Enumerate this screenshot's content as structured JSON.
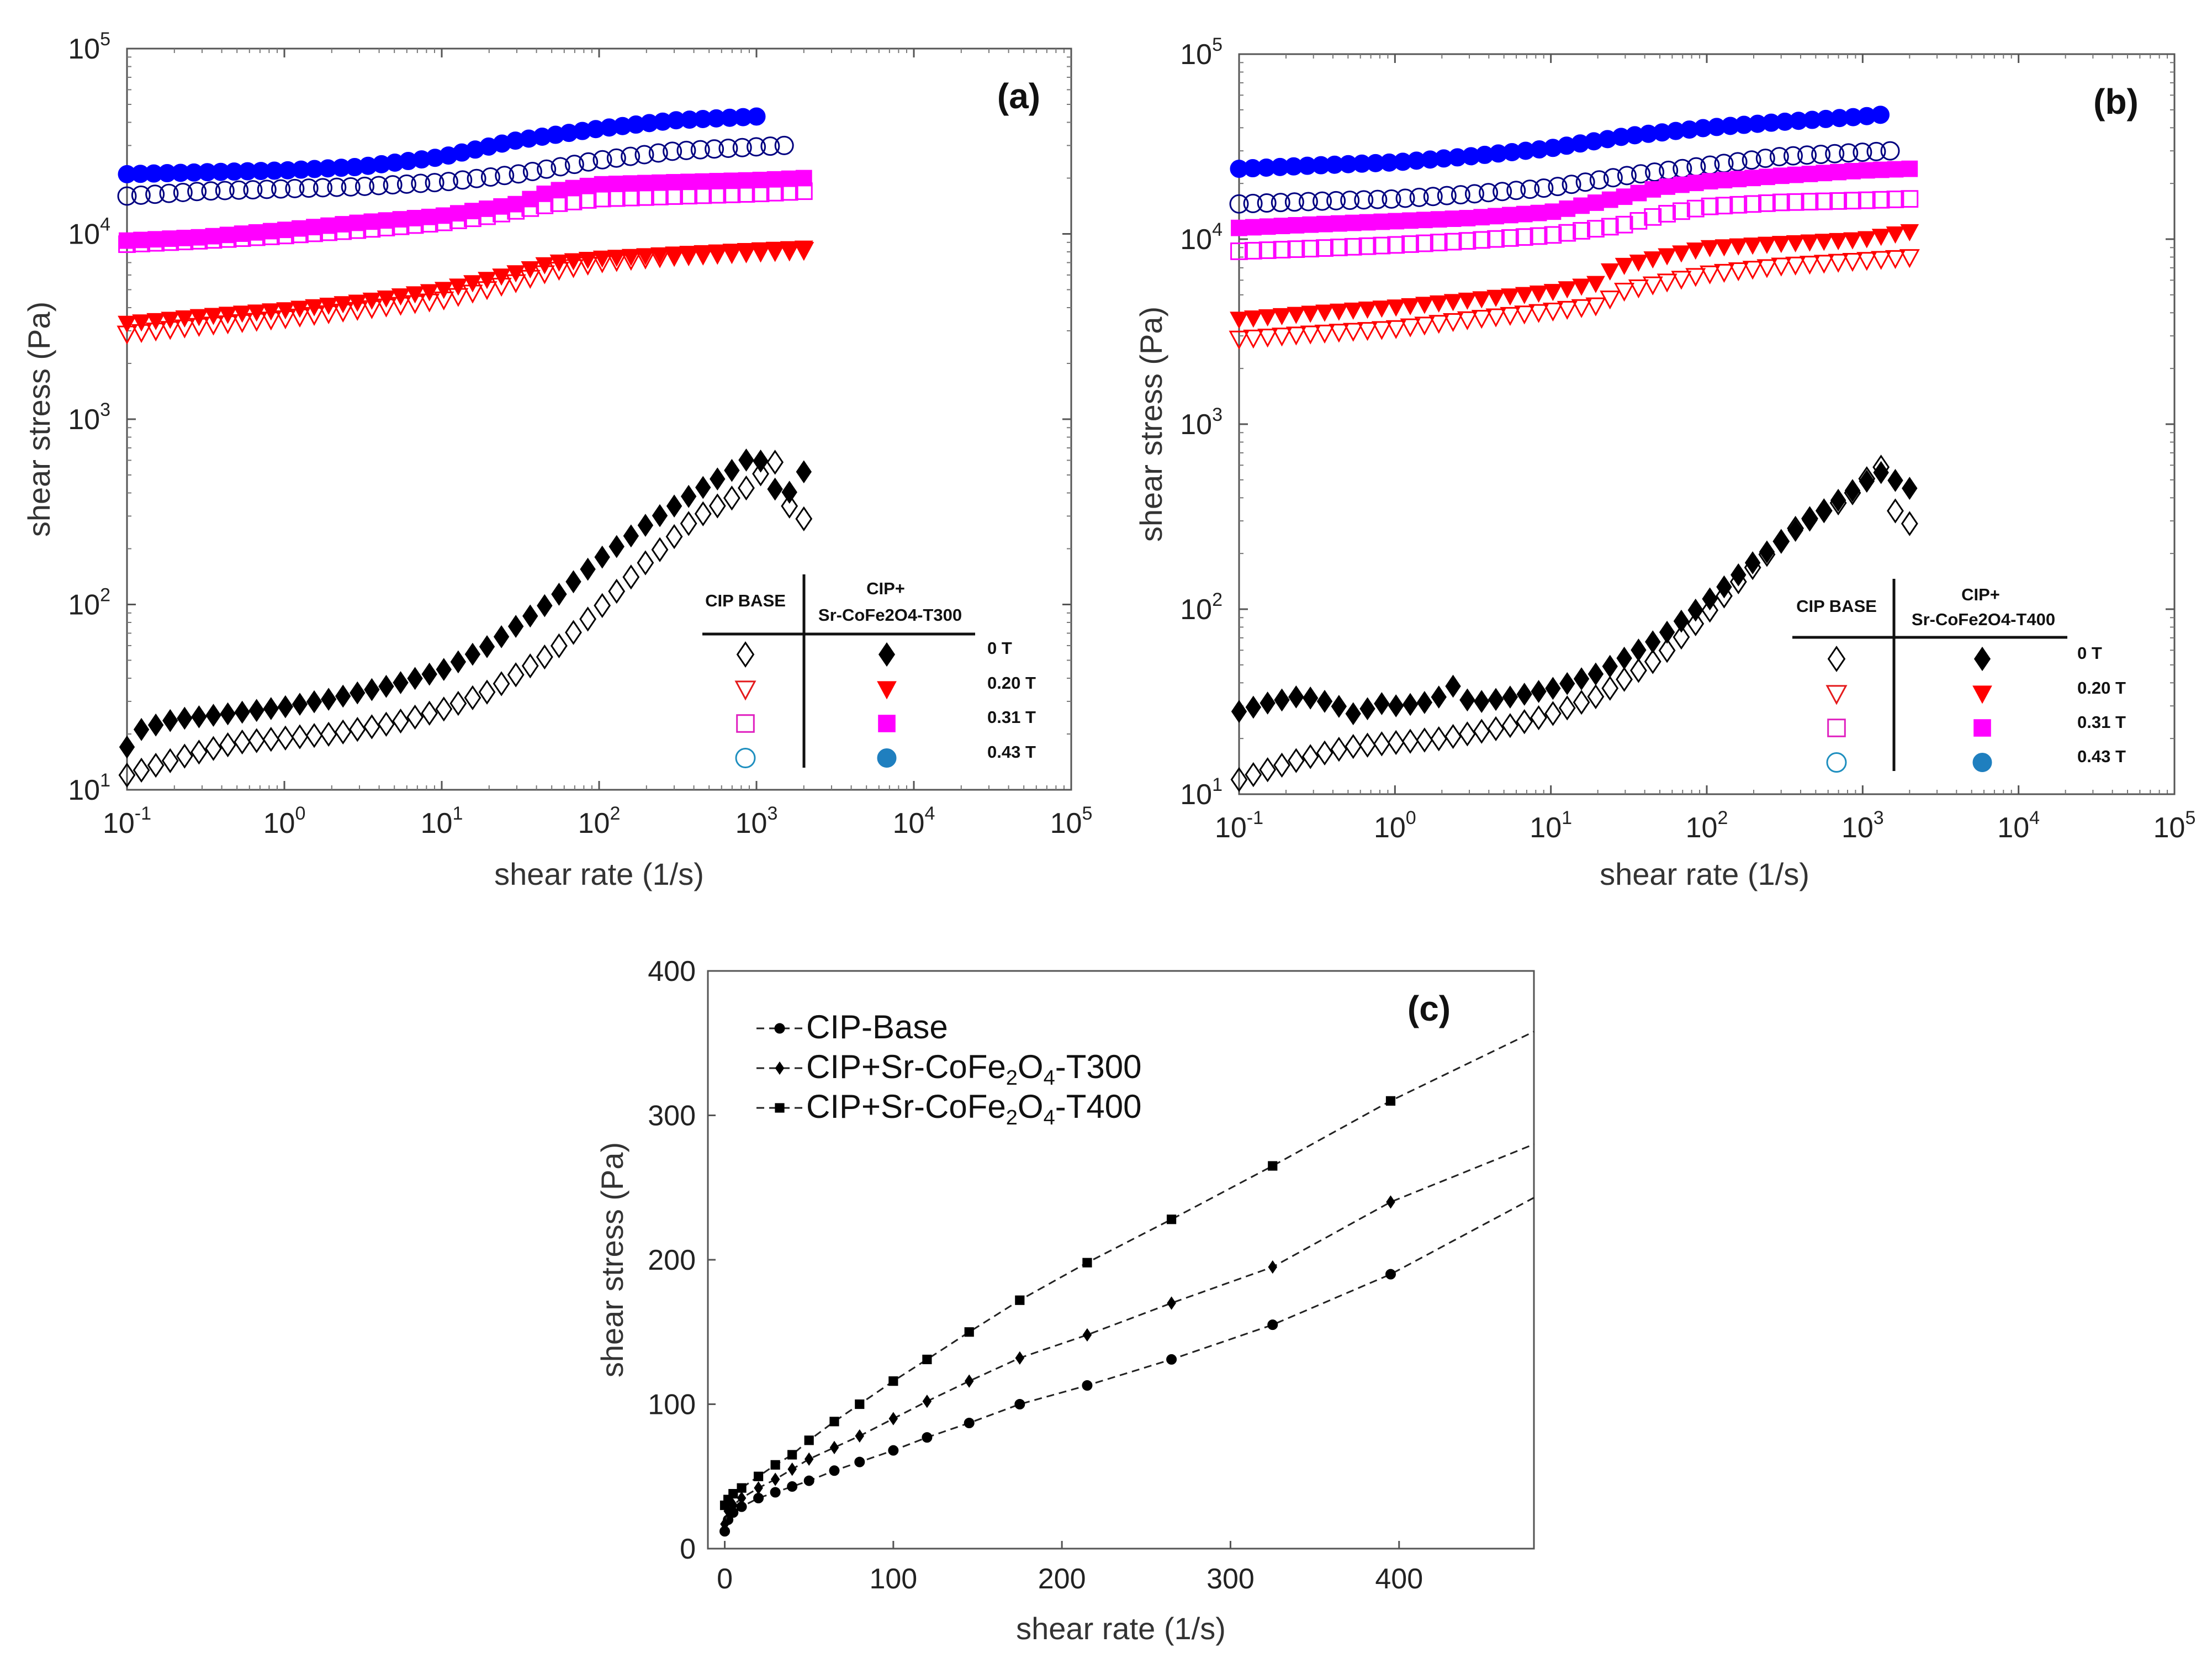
{
  "chart_data": [
    {
      "type": "scatter",
      "panel_label": "(a)",
      "xlabel": "shear rate (1/s)",
      "ylabel": "shear stress (Pa)",
      "xscale": "log",
      "yscale": "log",
      "xlim": [
        0.1,
        100000
      ],
      "ylim": [
        10,
        100000
      ],
      "x_tick_labels": [
        "10-1",
        "100",
        "101",
        "102",
        "103",
        "104",
        "105"
      ],
      "y_tick_labels": [
        "101",
        "102",
        "103",
        "104",
        "105"
      ],
      "legend": {
        "placement": "bottom-right",
        "col_open_header": "CIP BASE",
        "col_filled_header_line1": "CIP+",
        "col_filled_header_line2": "Sr-CoFe2O4-T300",
        "rows": [
          "0 T",
          "0.20 T",
          "0.31 T",
          "0.43 T"
        ]
      },
      "series": [
        {
          "name": "CIP BASE 0 T",
          "marker": "diamond",
          "filled": false,
          "color": "#000000",
          "x": [
            0.1,
            0.15,
            0.25,
            0.5,
            1,
            2,
            5,
            10,
            20,
            50,
            100,
            200,
            400,
            800,
            1300,
            1700,
            2000
          ],
          "y": [
            12,
            13.5,
            15.5,
            18,
            19,
            20,
            23,
            27,
            34,
            55,
            95,
            170,
            290,
            400,
            600,
            300,
            290
          ]
        },
        {
          "name": "CIP BASE 0.20 T",
          "marker": "triangle-down",
          "filled": false,
          "color": "#ff0000",
          "x": [
            0.1,
            0.3,
            1,
            3,
            10,
            30,
            50,
            100,
            300,
            1000,
            2000
          ],
          "y": [
            2900,
            3200,
            3500,
            3900,
            4400,
            5500,
            6300,
            7000,
            7600,
            8000,
            8200
          ]
        },
        {
          "name": "CIP BASE 0.31 T",
          "marker": "square",
          "filled": false,
          "color": "#ff00ff",
          "x": [
            0.1,
            0.3,
            1,
            3,
            10,
            20,
            50,
            100,
            300,
            1000,
            2000
          ],
          "y": [
            8800,
            9200,
            9800,
            10500,
            11500,
            12500,
            14500,
            15500,
            16000,
            16500,
            17000
          ]
        },
        {
          "name": "CIP BASE 0.43 T",
          "marker": "circle",
          "filled": false,
          "color": "#000080",
          "x": [
            0.1,
            0.3,
            1,
            3,
            10,
            30,
            100,
            300,
            1000,
            1500
          ],
          "y": [
            16000,
            17000,
            17500,
            18000,
            19000,
            21000,
            25000,
            28000,
            29500,
            30000
          ]
        },
        {
          "name": "CIP+Sr-CoFe2O4-T300 0 T",
          "marker": "diamond",
          "filled": true,
          "color": "#000000",
          "x": [
            0.1,
            0.12,
            0.2,
            0.5,
            1,
            2,
            5,
            10,
            20,
            50,
            100,
            200,
            400,
            700,
            1000,
            1300,
            1700,
            2000
          ],
          "y": [
            17,
            21,
            24,
            26,
            28,
            31,
            37,
            44,
            60,
            105,
            175,
            270,
            400,
            530,
            660,
            420,
            400,
            520
          ]
        },
        {
          "name": "CIP+Sr-CoFe2O4-T300 0.20 T",
          "marker": "triangle-down",
          "filled": true,
          "color": "#ff0000",
          "x": [
            0.1,
            0.3,
            1,
            3,
            10,
            30,
            50,
            100,
            300,
            1000,
            2000
          ],
          "y": [
            3300,
            3600,
            3900,
            4300,
            5000,
            6200,
            7000,
            7400,
            7800,
            8200,
            8400
          ]
        },
        {
          "name": "CIP+Sr-CoFe2O4-T300 0.31 T",
          "marker": "square",
          "filled": true,
          "color": "#ff00ff",
          "x": [
            0.1,
            0.3,
            1,
            3,
            10,
            30,
            50,
            100,
            300,
            1000,
            2000
          ],
          "y": [
            9200,
            9600,
            10500,
            11500,
            12500,
            14500,
            17000,
            18500,
            19000,
            19500,
            20000
          ]
        },
        {
          "name": "CIP+Sr-CoFe2O4-T300 0.43 T",
          "marker": "circle",
          "filled": true,
          "color": "#0000ff",
          "x": [
            0.1,
            0.3,
            1,
            3,
            10,
            30,
            100,
            300,
            1000
          ],
          "y": [
            21000,
            21500,
            22000,
            23000,
            26000,
            32000,
            37000,
            41000,
            43000
          ]
        }
      ]
    },
    {
      "type": "scatter",
      "panel_label": "(b)",
      "xlabel": "shear rate (1/s)",
      "ylabel": "shear stress (Pa)",
      "xscale": "log",
      "yscale": "log",
      "xlim": [
        0.1,
        100000
      ],
      "ylim": [
        10,
        100000
      ],
      "x_tick_labels": [
        "10-1",
        "100",
        "101",
        "102",
        "103",
        "104",
        "105"
      ],
      "y_tick_labels": [
        "101",
        "102",
        "103",
        "104",
        "105"
      ],
      "legend": {
        "placement": "bottom-right",
        "col_open_header": "CIP BASE",
        "col_filled_header_line1": "CIP+",
        "col_filled_header_line2": "Sr-CoFe2O4-T400",
        "rows": [
          "0 T",
          "0.20 T",
          "0.31 T",
          "0.43 T"
        ]
      },
      "series": [
        {
          "name": "CIP BASE 0 T",
          "marker": "diamond",
          "filled": false,
          "color": "#000000",
          "x": [
            0.1,
            0.15,
            0.25,
            0.5,
            1,
            2,
            5,
            10,
            20,
            50,
            100,
            200,
            400,
            800,
            1300,
            1700,
            2000
          ],
          "y": [
            12,
            13.5,
            15.5,
            18,
            19,
            20,
            23,
            27,
            34,
            55,
            95,
            170,
            290,
            400,
            600,
            300,
            290
          ]
        },
        {
          "name": "CIP BASE 0.20 T",
          "marker": "triangle-down",
          "filled": false,
          "color": "#ff0000",
          "x": [
            0.1,
            0.3,
            1,
            3,
            10,
            20,
            30,
            50,
            100,
            300,
            1000,
            2000
          ],
          "y": [
            2900,
            3100,
            3300,
            3700,
            4100,
            4400,
            5300,
            5800,
            6500,
            7200,
            7700,
            8000
          ]
        },
        {
          "name": "CIP BASE 0.31 T",
          "marker": "square",
          "filled": false,
          "color": "#ff00ff",
          "x": [
            0.1,
            0.3,
            1,
            3,
            10,
            30,
            50,
            100,
            300,
            1000,
            2000
          ],
          "y": [
            8600,
            8900,
            9300,
            9800,
            10500,
            12000,
            13500,
            15000,
            15800,
            16200,
            16500
          ]
        },
        {
          "name": "CIP BASE 0.43 T",
          "marker": "circle",
          "filled": false,
          "color": "#000080",
          "x": [
            0.1,
            0.3,
            1,
            3,
            10,
            30,
            100,
            300,
            1000,
            1500
          ],
          "y": [
            15500,
            16000,
            16500,
            17500,
            19000,
            22000,
            25000,
            28000,
            29500,
            30000
          ]
        },
        {
          "name": "CIP+Sr-CoFe2O4-T400 0 T",
          "marker": "diamond",
          "filled": true,
          "color": "#000000",
          "x": [
            0.1,
            0.15,
            0.25,
            0.4,
            0.55,
            0.8,
            1,
            1.5,
            2,
            2.5,
            3,
            5,
            10,
            20,
            50,
            100,
            200,
            400,
            800,
            1300,
            2000
          ],
          "y": [
            28,
            31,
            34,
            31,
            27,
            31,
            30,
            31,
            34,
            40,
            31,
            33,
            37,
            45,
            70,
            110,
            180,
            280,
            420,
            550,
            450
          ]
        },
        {
          "name": "CIP+Sr-CoFe2O4-T400 0.20 T",
          "marker": "triangle-down",
          "filled": true,
          "color": "#ff0000",
          "x": [
            0.1,
            0.3,
            1,
            3,
            10,
            20,
            25,
            50,
            100,
            300,
            1000,
            2000
          ],
          "y": [
            3700,
            4000,
            4300,
            4700,
            5200,
            5800,
            7000,
            8000,
            9000,
            9500,
            10000,
            11000
          ]
        },
        {
          "name": "CIP+Sr-CoFe2O4-T400 0.31 T",
          "marker": "square",
          "filled": true,
          "color": "#ff00ff",
          "x": [
            0.1,
            0.3,
            1,
            3,
            10,
            30,
            50,
            100,
            300,
            1000,
            2000
          ],
          "y": [
            11500,
            12000,
            12500,
            13000,
            14000,
            17000,
            19000,
            20500,
            22000,
            23500,
            24000
          ]
        },
        {
          "name": "CIP+Sr-CoFe2O4-T400 0.43 T",
          "marker": "circle",
          "filled": true,
          "color": "#0000ff",
          "x": [
            0.1,
            0.3,
            1,
            3,
            10,
            30,
            100,
            300,
            1000,
            1300
          ],
          "y": [
            24000,
            25000,
            26000,
            28000,
            31000,
            36000,
            40000,
            43000,
            46000,
            47000
          ]
        }
      ]
    },
    {
      "type": "line",
      "panel_label": "(c)",
      "xlabel": "shear rate (1/s)",
      "ylabel": "shear stress (Pa)",
      "xlim": [
        -10,
        480
      ],
      "ylim": [
        0,
        400
      ],
      "x_tick_labels": [
        "0",
        "100",
        "200",
        "300",
        "400"
      ],
      "y_tick_labels": [
        "0",
        "100",
        "200",
        "300",
        "400"
      ],
      "legend_placement": "top-left",
      "series": [
        {
          "name": "CIP-Base",
          "label_prefix": "CIP-Base",
          "label_sub1": "",
          "label_mid": "",
          "label_sub2": "",
          "label_suffix": "",
          "marker": "circle",
          "x": [
            0,
            2,
            5,
            10,
            20,
            30,
            40,
            50,
            65,
            80,
            100,
            120,
            145,
            175,
            215,
            265,
            325,
            395,
            480
          ],
          "y": [
            12,
            20,
            25,
            29,
            35,
            39,
            43,
            47,
            54,
            60,
            68,
            77,
            87,
            100,
            113,
            131,
            155,
            190,
            243
          ]
        },
        {
          "name": "CIP+Sr-CoFe2O4-T300",
          "label_prefix": "CIP+Sr-CoFe",
          "label_sub1": "2",
          "label_mid": "O",
          "label_sub2": "4",
          "label_suffix": "-T300",
          "marker": "diamond",
          "x": [
            0,
            2,
            5,
            10,
            20,
            30,
            40,
            50,
            65,
            80,
            100,
            120,
            145,
            175,
            215,
            265,
            325,
            395,
            480
          ],
          "y": [
            17,
            26,
            30,
            35,
            42,
            48,
            55,
            62,
            70,
            78,
            90,
            102,
            116,
            132,
            148,
            170,
            195,
            240,
            280
          ]
        },
        {
          "name": "CIP+Sr-CoFe2O4-T400",
          "label_prefix": "CIP+Sr-CoFe",
          "label_sub1": "2",
          "label_mid": "O",
          "label_sub2": "4",
          "label_suffix": "-T400",
          "marker": "square",
          "x": [
            0,
            2,
            5,
            10,
            20,
            30,
            40,
            50,
            65,
            80,
            100,
            120,
            145,
            175,
            215,
            265,
            325,
            395,
            480
          ],
          "y": [
            30,
            34,
            38,
            42,
            50,
            58,
            65,
            75,
            88,
            100,
            116,
            131,
            150,
            172,
            198,
            228,
            265,
            310,
            358
          ]
        }
      ]
    }
  ]
}
